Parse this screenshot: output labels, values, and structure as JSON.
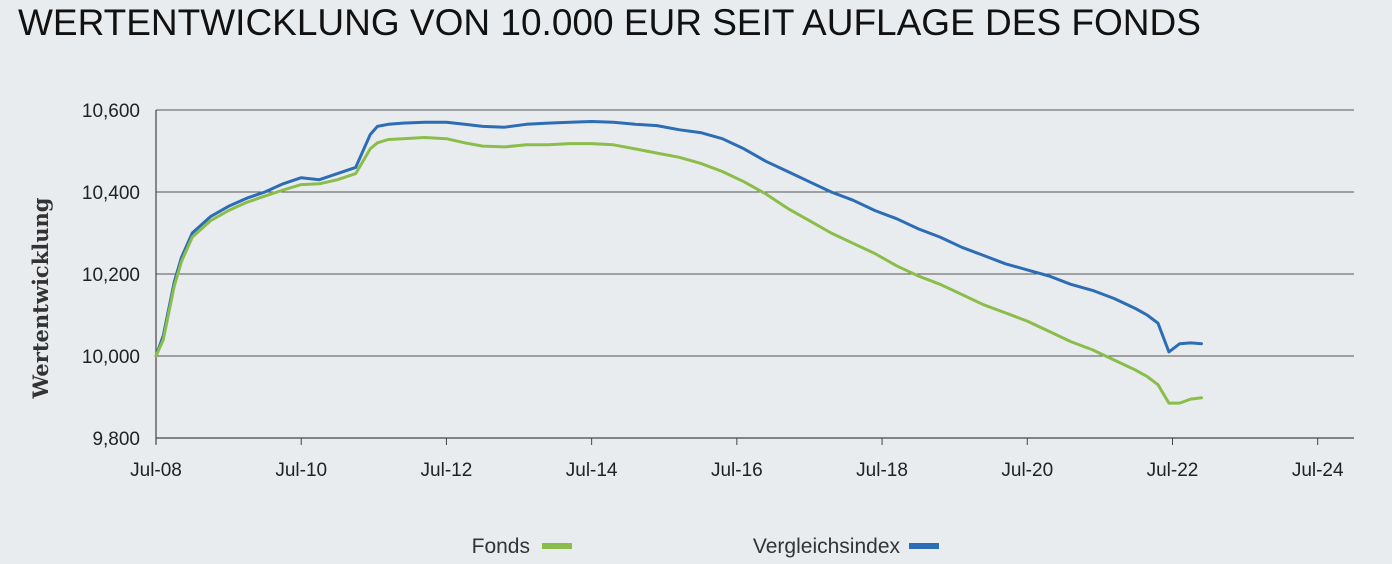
{
  "title": "WERTENTWICKLUNG VON 10.000 EUR SEIT AUFLAGE DES FONDS",
  "chart_data": {
    "type": "line",
    "title": "WERTENTWICKLUNG VON 10.000 EUR SEIT AUFLAGE DES FONDS",
    "xlabel": "",
    "ylabel": "Wertentwicklung",
    "xlim": [
      2008.5,
      2025.0
    ],
    "ylim": [
      9800,
      10600
    ],
    "x_ticks": [
      {
        "value": 2008.5,
        "label": "Jul-08"
      },
      {
        "value": 2010.5,
        "label": "Jul-10"
      },
      {
        "value": 2012.5,
        "label": "Jul-12"
      },
      {
        "value": 2014.5,
        "label": "Jul-14"
      },
      {
        "value": 2016.5,
        "label": "Jul-16"
      },
      {
        "value": 2018.5,
        "label": "Jul-18"
      },
      {
        "value": 2020.5,
        "label": "Jul-20"
      },
      {
        "value": 2022.5,
        "label": "Jul-22"
      },
      {
        "value": 2024.5,
        "label": "Jul-24"
      }
    ],
    "y_ticks": [
      {
        "value": 9800,
        "label": "9,800"
      },
      {
        "value": 10000,
        "label": "10,000"
      },
      {
        "value": 10200,
        "label": "10,200"
      },
      {
        "value": 10400,
        "label": "10,400"
      },
      {
        "value": 10600,
        "label": "10,600"
      }
    ],
    "grid": true,
    "legend_position": "bottom-center",
    "series": [
      {
        "name": "Fonds",
        "color": "#8bbd4a",
        "x": [
          2008.5,
          2008.6,
          2008.75,
          2008.85,
          2009.0,
          2009.25,
          2009.5,
          2009.75,
          2010.0,
          2010.25,
          2010.5,
          2010.75,
          2011.0,
          2011.25,
          2011.45,
          2011.55,
          2011.7,
          2011.9,
          2012.2,
          2012.5,
          2012.75,
          2013.0,
          2013.3,
          2013.6,
          2013.9,
          2014.2,
          2014.5,
          2014.8,
          2015.1,
          2015.4,
          2015.7,
          2016.0,
          2016.3,
          2016.6,
          2016.9,
          2017.2,
          2017.5,
          2017.8,
          2018.1,
          2018.4,
          2018.7,
          2019.0,
          2019.3,
          2019.6,
          2019.9,
          2020.2,
          2020.5,
          2020.8,
          2021.1,
          2021.4,
          2021.7,
          2022.0,
          2022.15,
          2022.3,
          2022.45,
          2022.6,
          2022.75,
          2022.9
        ],
        "values": [
          10000,
          10040,
          10170,
          10230,
          10290,
          10330,
          10355,
          10375,
          10390,
          10405,
          10418,
          10420,
          10430,
          10445,
          10505,
          10520,
          10528,
          10530,
          10533,
          10530,
          10520,
          10512,
          10510,
          10515,
          10515,
          10518,
          10518,
          10515,
          10505,
          10495,
          10485,
          10470,
          10450,
          10425,
          10395,
          10360,
          10330,
          10300,
          10275,
          10250,
          10220,
          10195,
          10175,
          10150,
          10125,
          10105,
          10085,
          10060,
          10035,
          10015,
          9990,
          9965,
          9950,
          9930,
          9885,
          9885,
          9895,
          9898
        ]
      },
      {
        "name": "Vergleichsindex",
        "color": "#2d6db5",
        "x": [
          2008.5,
          2008.6,
          2008.75,
          2008.85,
          2009.0,
          2009.25,
          2009.5,
          2009.75,
          2010.0,
          2010.25,
          2010.5,
          2010.75,
          2011.0,
          2011.25,
          2011.45,
          2011.55,
          2011.7,
          2011.9,
          2012.2,
          2012.5,
          2012.75,
          2013.0,
          2013.3,
          2013.6,
          2013.9,
          2014.2,
          2014.5,
          2014.8,
          2015.1,
          2015.4,
          2015.7,
          2016.0,
          2016.3,
          2016.6,
          2016.9,
          2017.2,
          2017.5,
          2017.8,
          2018.1,
          2018.4,
          2018.7,
          2019.0,
          2019.3,
          2019.6,
          2019.9,
          2020.2,
          2020.5,
          2020.8,
          2021.1,
          2021.4,
          2021.7,
          2022.0,
          2022.15,
          2022.3,
          2022.45,
          2022.6,
          2022.75,
          2022.9
        ],
        "values": [
          10000,
          10050,
          10180,
          10240,
          10300,
          10340,
          10365,
          10385,
          10400,
          10420,
          10435,
          10430,
          10445,
          10460,
          10540,
          10560,
          10565,
          10568,
          10570,
          10570,
          10565,
          10560,
          10558,
          10565,
          10568,
          10570,
          10572,
          10570,
          10565,
          10562,
          10552,
          10545,
          10530,
          10505,
          10475,
          10450,
          10425,
          10400,
          10380,
          10355,
          10335,
          10310,
          10290,
          10265,
          10245,
          10225,
          10210,
          10195,
          10175,
          10160,
          10140,
          10115,
          10100,
          10080,
          10010,
          10030,
          10032,
          10030
        ]
      }
    ]
  }
}
